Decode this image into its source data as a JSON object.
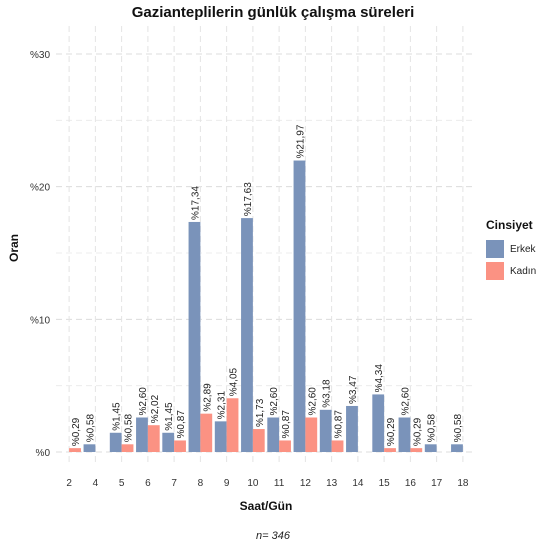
{
  "chart_data": {
    "type": "bar",
    "title": "Gazianteplilerin günlük çalışma süreleri",
    "xlabel": "Saat/Gün",
    "ylabel": "Oran",
    "caption": "n=  346",
    "categories": [
      "2",
      "4",
      "5",
      "6",
      "7",
      "8",
      "9",
      "10",
      "11",
      "12",
      "13",
      "14",
      "15",
      "16",
      "17",
      "18"
    ],
    "ylim": [
      0,
      31
    ],
    "yticks": [
      {
        "value": 0,
        "label": "%0"
      },
      {
        "value": 10,
        "label": "%10"
      },
      {
        "value": 20,
        "label": "%20"
      },
      {
        "value": 30,
        "label": "%30"
      }
    ],
    "grid": true,
    "legend": {
      "title": "Cinsiyet",
      "position": "right"
    },
    "series": [
      {
        "name": "Erkek",
        "color": "#7a93ba",
        "values": [
          null,
          0.58,
          1.45,
          2.6,
          1.45,
          17.34,
          2.31,
          17.63,
          2.6,
          21.97,
          3.18,
          3.47,
          4.34,
          2.6,
          0.58,
          0.58
        ],
        "labels": [
          null,
          "%0,58",
          "%1,45",
          "%2,60",
          "%1,45",
          "%17,34",
          "%2,31",
          "%17,63",
          "%2,60",
          "%21,97",
          "%3,18",
          "%3,47",
          "%4,34",
          "%2,60",
          "%0,58",
          "%0,58"
        ]
      },
      {
        "name": "Kadın",
        "color": "#fb9283",
        "values": [
          0.29,
          null,
          0.58,
          2.02,
          0.87,
          2.89,
          4.05,
          1.73,
          0.87,
          2.6,
          0.87,
          null,
          0.29,
          0.29,
          null,
          null
        ],
        "labels": [
          "%0,29",
          null,
          "%0,58",
          "%2,02",
          "%0,87",
          "%2,89",
          "%4,05",
          "%1,73",
          "%0,87",
          "%2,60",
          "%0,87",
          null,
          "%0,29",
          "%0,29",
          null,
          null
        ]
      }
    ]
  }
}
